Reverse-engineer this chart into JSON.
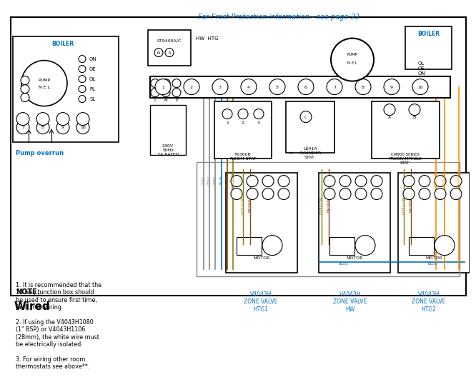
{
  "title": "Wired",
  "title_color": "#000000",
  "title_fontsize": 11,
  "bg_color": "#ffffff",
  "border_color": "#000000",
  "note_title": "NOTE:",
  "note_lines": "1. It is recommended that the\n10 way junction box should\nbe used to ensure first time,\nfault free wiring.\n\n2. If using the V4043H1080\n(1\" BSP) or V4043H1106\n(28mm), the white wire must\nbe electrically isolated.\n\n3. For wiring other room\nthermostats see above**.",
  "pump_overrun_label": "Pump overrun",
  "pump_overrun_color": "#0070C0",
  "zone_valve_color": "#0070C0",
  "footer_text": "For Frost Protection information - see page 22",
  "footer_color": "#0070C0",
  "wire_colors": {
    "grey": "#888888",
    "blue": "#0070C0",
    "brown": "#8B4513",
    "gyellow": "#808000",
    "orange": "#FF8C00"
  }
}
